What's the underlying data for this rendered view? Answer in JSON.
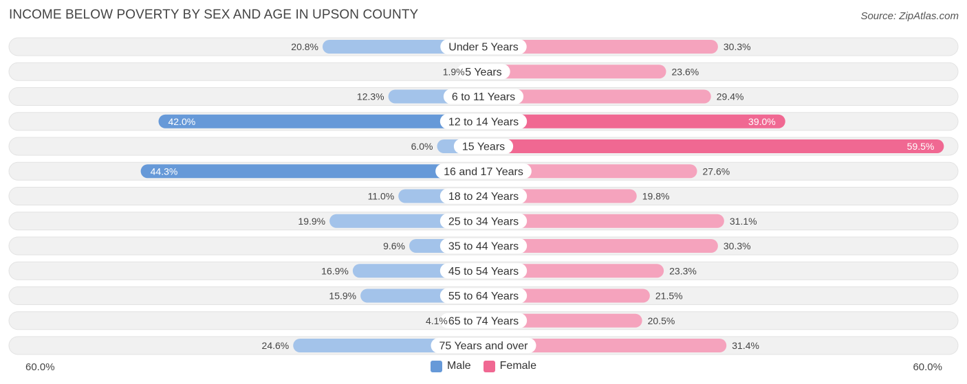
{
  "header": {
    "title": "INCOME BELOW POVERTY BY SEX AND AGE IN UPSON COUNTY",
    "source": "Source: ZipAtlas.com"
  },
  "axis": {
    "left_label": "60.0%",
    "right_label": "60.0%"
  },
  "legend": {
    "male_label": "Male",
    "female_label": "Female"
  },
  "colors": {
    "male_dark": "#6699d8",
    "male_light": "#a3c3ea",
    "female_dark": "#f06892",
    "female_light": "#f5a3bd",
    "row_bg": "#f1f1f1",
    "row_border": "#e2e2e2"
  },
  "chart_data": {
    "type": "bar",
    "orientation": "horizontal-diverging",
    "title": "INCOME BELOW POVERTY BY SEX AND AGE IN UPSON COUNTY",
    "xlim": [
      -60,
      60
    ],
    "categories": [
      "Under 5 Years",
      "5 Years",
      "6 to 11 Years",
      "12 to 14 Years",
      "15 Years",
      "16 and 17 Years",
      "18 to 24 Years",
      "25 to 34 Years",
      "35 to 44 Years",
      "45 to 54 Years",
      "55 to 64 Years",
      "65 to 74 Years",
      "75 Years and over"
    ],
    "series": [
      {
        "name": "Male",
        "values": [
          20.8,
          1.9,
          12.3,
          42.0,
          6.0,
          44.3,
          11.0,
          19.9,
          9.6,
          16.9,
          15.9,
          4.1,
          24.6
        ],
        "labels": [
          "20.8%",
          "1.9%",
          "12.3%",
          "42.0%",
          "6.0%",
          "44.3%",
          "11.0%",
          "19.9%",
          "9.6%",
          "16.9%",
          "15.9%",
          "4.1%",
          "24.6%"
        ]
      },
      {
        "name": "Female",
        "values": [
          30.3,
          23.6,
          29.4,
          39.0,
          59.5,
          27.6,
          19.8,
          31.1,
          30.3,
          23.3,
          21.5,
          20.5,
          31.4
        ],
        "labels": [
          "30.3%",
          "23.6%",
          "29.4%",
          "39.0%",
          "59.5%",
          "27.6%",
          "19.8%",
          "31.1%",
          "30.3%",
          "23.3%",
          "21.5%",
          "20.5%",
          "31.4%"
        ]
      }
    ]
  }
}
